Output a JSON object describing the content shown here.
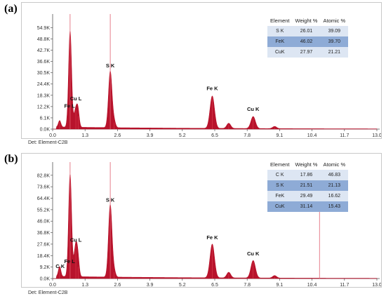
{
  "panels": [
    {
      "label": "(a)",
      "detector": "Det: Element-C2B",
      "table": {
        "headers": [
          "Element",
          "Weight %",
          "Atomic %"
        ],
        "rows": [
          [
            "S K",
            "26.01",
            "39.09"
          ],
          [
            "FeK",
            "46.02",
            "39.70"
          ],
          [
            "CuK",
            "27.97",
            "21.21"
          ]
        ]
      }
    },
    {
      "label": "(b)",
      "detector": "Det: Element-C2B",
      "table": {
        "headers": [
          "Element",
          "Weight %",
          "Atomic %"
        ],
        "rows": [
          [
            "C K",
            "17.86",
            "46.83"
          ],
          [
            "S K",
            "21.51",
            "21.13"
          ],
          [
            "FeK",
            "29.49",
            "16.62"
          ],
          [
            "CuK",
            "31.14",
            "15.43"
          ]
        ]
      }
    }
  ],
  "colors": {
    "spectrum": "#b3001b",
    "spectrum_light": "#e8525e",
    "marker": "#e06070",
    "axis": "#555555"
  },
  "chart_data": [
    {
      "type": "area",
      "xlim": [
        0.0,
        13.0
      ],
      "ylim": [
        0,
        60000
      ],
      "x_ticks": [
        "0.0",
        "1.3",
        "2.6",
        "3.9",
        "5.2",
        "6.5",
        "7.8",
        "9.1",
        "10.4",
        "11.7",
        "13.0"
      ],
      "y_ticks": [
        "0.0K",
        "6.1K",
        "12.2K",
        "18.3K",
        "24.4K",
        "30.5K",
        "36.6K",
        "42.7K",
        "48.8K",
        "54.9K"
      ],
      "peaks": [
        {
          "x": 0.28,
          "y": 3500,
          "w": 0.05
        },
        {
          "x": 0.7,
          "y": 52000,
          "w": 0.06
        },
        {
          "x": 0.93,
          "y": 10000,
          "w": 0.07
        },
        {
          "x": 1.02,
          "y": 6800,
          "w": 0.05
        },
        {
          "x": 2.31,
          "y": 30500,
          "w": 0.07
        },
        {
          "x": 2.46,
          "y": 3500,
          "w": 0.06
        },
        {
          "x": 6.4,
          "y": 17500,
          "w": 0.09
        },
        {
          "x": 7.06,
          "y": 2800,
          "w": 0.08
        },
        {
          "x": 8.04,
          "y": 6500,
          "w": 0.09
        },
        {
          "x": 8.9,
          "y": 1200,
          "w": 0.08
        }
      ],
      "background": 1200,
      "markers": [
        0.7,
        2.31
      ],
      "annotations": [
        {
          "text": "S  K",
          "x": 2.31,
          "y": 33500
        },
        {
          "text": "Fe K",
          "x": 6.4,
          "y": 21000
        },
        {
          "text": "Cu L",
          "x": 0.93,
          "y": 15500
        },
        {
          "text": "Fe L",
          "x": 0.68,
          "y": 11500
        },
        {
          "text": "Cu K",
          "x": 8.04,
          "y": 9800
        }
      ]
    },
    {
      "type": "area",
      "xlim": [
        0.0,
        13.0
      ],
      "ylim": [
        0,
        90000
      ],
      "x_ticks": [
        "0.0",
        "1.3",
        "2.6",
        "3.9",
        "5.2",
        "6.5",
        "7.8",
        "9.1",
        "10.4",
        "11.7",
        "13.0"
      ],
      "y_ticks": [
        "0.0K",
        "9.2K",
        "18.4K",
        "27.6K",
        "36.8K",
        "46.0K",
        "55.2K",
        "64.4K",
        "73.6K",
        "82.8K"
      ],
      "peaks": [
        {
          "x": 0.28,
          "y": 8000,
          "w": 0.05
        },
        {
          "x": 0.7,
          "y": 82000,
          "w": 0.06
        },
        {
          "x": 0.93,
          "y": 26000,
          "w": 0.07
        },
        {
          "x": 1.02,
          "y": 9000,
          "w": 0.05
        },
        {
          "x": 2.31,
          "y": 58000,
          "w": 0.07
        },
        {
          "x": 2.46,
          "y": 5000,
          "w": 0.06
        },
        {
          "x": 6.4,
          "y": 27000,
          "w": 0.09
        },
        {
          "x": 7.06,
          "y": 4500,
          "w": 0.08
        },
        {
          "x": 8.04,
          "y": 14000,
          "w": 0.09
        },
        {
          "x": 8.9,
          "y": 2000,
          "w": 0.08
        }
      ],
      "background": 1800,
      "markers": [
        0.7,
        2.31,
        10.7
      ],
      "annotations": [
        {
          "text": "S  K",
          "x": 2.31,
          "y": 61500
        },
        {
          "text": "Fe K",
          "x": 6.4,
          "y": 31500
        },
        {
          "text": "Cu L",
          "x": 0.93,
          "y": 29500
        },
        {
          "text": "Fe L",
          "x": 0.68,
          "y": 12500
        },
        {
          "text": "C  K",
          "x": 0.3,
          "y": 8500
        },
        {
          "text": "Cu K",
          "x": 8.04,
          "y": 18500
        }
      ]
    }
  ]
}
